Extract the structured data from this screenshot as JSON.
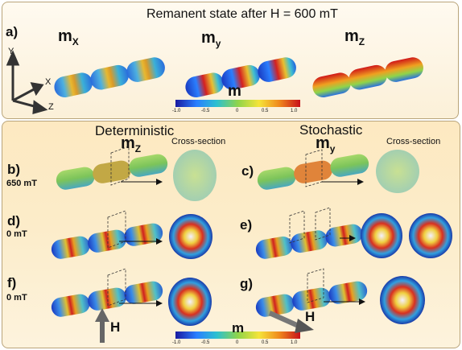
{
  "title": "Remanent state after H = 600 mT",
  "panel_a": {
    "label": "a)",
    "components": [
      {
        "base": "m",
        "sub": "X"
      },
      {
        "base": "m",
        "sub": "y"
      },
      {
        "base": "m",
        "sub": "Z"
      }
    ],
    "axes": {
      "y": "Y",
      "x": "X",
      "z": "Z"
    }
  },
  "colorbar": {
    "title": "m",
    "ticks": [
      "-1.0",
      "-0.5",
      "0",
      "0.5",
      "1.0"
    ],
    "colors": [
      "#1a1aa0",
      "#2a7fff",
      "#2cc0d0",
      "#8fd44a",
      "#f5e43a",
      "#f08a1c",
      "#c8101a"
    ]
  },
  "deterministic": {
    "heading": "Deterministic",
    "component": {
      "base": "m",
      "sub": "Z"
    },
    "cross_section": "Cross-section"
  },
  "stochastic": {
    "heading": "Stochastic",
    "component": {
      "base": "m",
      "sub": "y"
    },
    "cross_section": "Cross-section"
  },
  "rows": [
    {
      "left_label": "b)",
      "left_field": "650 mT",
      "right_label": "c)"
    },
    {
      "left_label": "d)",
      "left_field": "0 mT",
      "right_label": "e)"
    },
    {
      "left_label": "f)",
      "left_field": "0 mT",
      "right_label": "g)"
    }
  ],
  "field_arrows": {
    "left": "H",
    "right": "H"
  }
}
